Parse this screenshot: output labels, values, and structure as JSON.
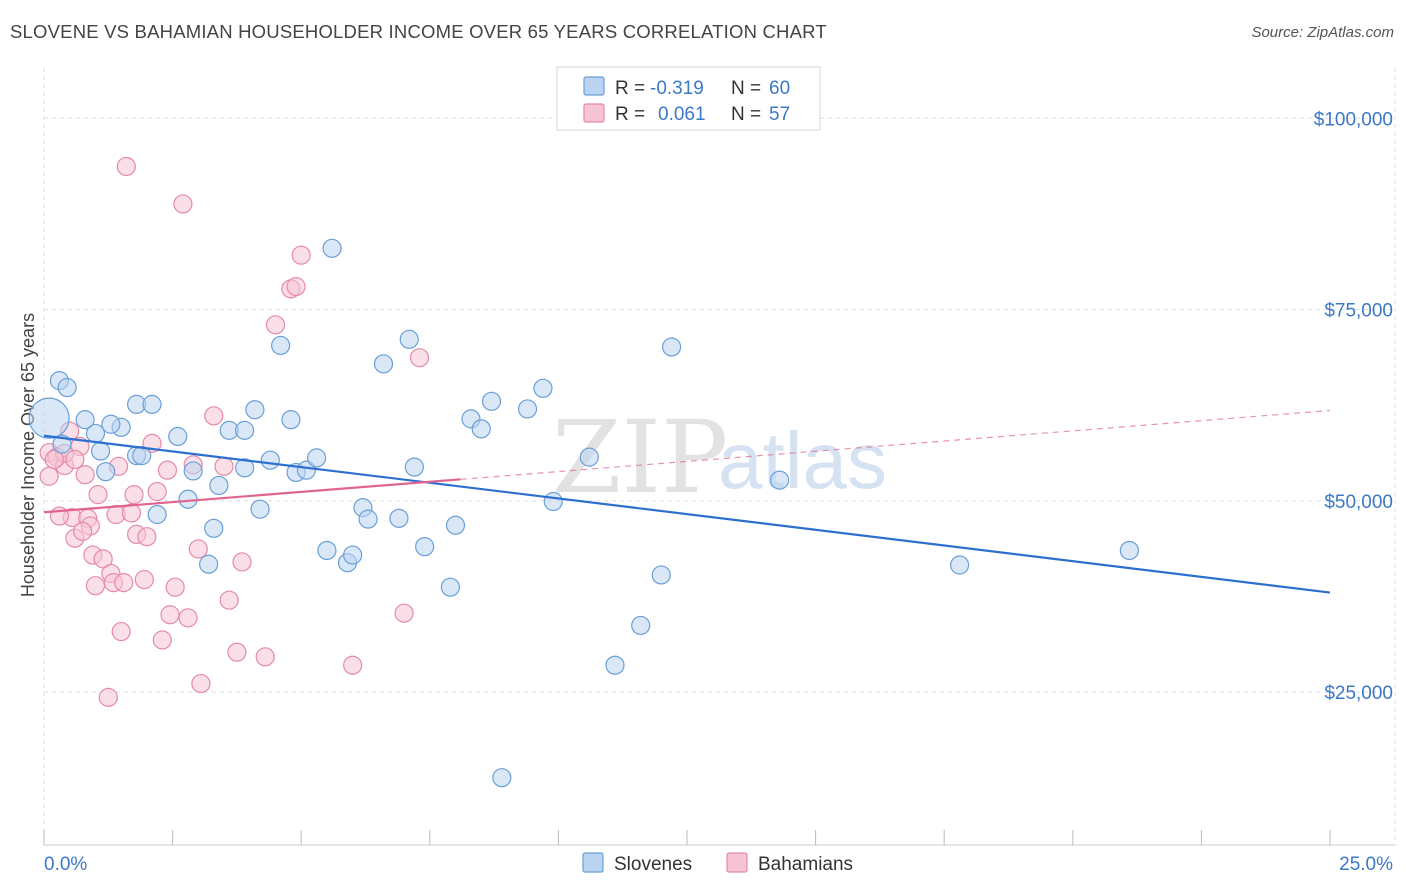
{
  "title": "SLOVENE VS BAHAMIAN HOUSEHOLDER INCOME OVER 65 YEARS CORRELATION CHART",
  "source": "Source: ZipAtlas.com",
  "watermark": {
    "zip": "ZIP",
    "atlas": "atlas"
  },
  "legend_top": {
    "rows": [
      {
        "r_label": "R =",
        "r_value": "-0.319",
        "n_label": "N =",
        "n_value": "60"
      },
      {
        "r_label": "R =",
        "r_value": "0.061",
        "n_label": "N =",
        "n_value": "57"
      }
    ]
  },
  "legend_bottom": {
    "items": [
      "Slovenes",
      "Bahamians"
    ]
  },
  "colors": {
    "blue_fill": "#b9d3f1",
    "blue_stroke": "#6a9fd8",
    "blue_line": "#2d6fcf",
    "pink_fill": "#f7c4d3",
    "pink_stroke": "#e58aa8",
    "pink_line": "#e0648f",
    "grid": "#dedede",
    "tick_text": "#3b78c8"
  },
  "chart_data": {
    "type": "scatter",
    "title": "SLOVENE VS BAHAMIAN HOUSEHOLDER INCOME OVER 65 YEARS CORRELATION CHART",
    "xlabel": "",
    "ylabel": "Householder Income Over 65 years",
    "xlim": [
      0,
      25
    ],
    "ylim": [
      5000,
      105000
    ],
    "x_tick_labels": [
      "0.0%",
      "25.0%"
    ],
    "y_ticks": [
      25000,
      50000,
      75000,
      100000
    ],
    "y_tick_labels": [
      "$25,000",
      "$50,000",
      "$75,000",
      "$100,000"
    ],
    "grid": true,
    "legend_position": "top-center",
    "series": [
      {
        "name": "Slovenes",
        "color": "#6a9fd8",
        "trend": {
          "x": [
            0,
            25
          ],
          "y": [
            58500,
            38000
          ],
          "dashed_extension": false
        },
        "points": [
          [
            0.1,
            60800,
            "large"
          ],
          [
            0.3,
            65700
          ],
          [
            0.45,
            64800
          ],
          [
            1.0,
            58800
          ],
          [
            1.5,
            59600
          ],
          [
            1.8,
            62600
          ],
          [
            2.1,
            62600
          ],
          [
            0.8,
            60600
          ],
          [
            1.3,
            60000
          ],
          [
            1.2,
            53800
          ],
          [
            1.8,
            55900
          ],
          [
            2.6,
            58400
          ],
          [
            2.9,
            53900
          ],
          [
            1.9,
            55900
          ],
          [
            2.2,
            48200
          ],
          [
            2.8,
            50200
          ],
          [
            3.2,
            41700
          ],
          [
            3.3,
            46400
          ],
          [
            3.4,
            52000
          ],
          [
            3.6,
            59200
          ],
          [
            3.9,
            59200
          ],
          [
            3.9,
            54300
          ],
          [
            4.1,
            61900
          ],
          [
            4.2,
            48900
          ],
          [
            4.4,
            55300
          ],
          [
            4.6,
            70300
          ],
          [
            4.8,
            60600
          ],
          [
            4.9,
            53700
          ],
          [
            5.1,
            54000
          ],
          [
            5.3,
            55600
          ],
          [
            5.5,
            43500
          ],
          [
            5.6,
            83000
          ],
          [
            5.9,
            41900
          ],
          [
            6.0,
            42900
          ],
          [
            6.2,
            49100
          ],
          [
            6.3,
            47600
          ],
          [
            6.6,
            67900
          ],
          [
            6.9,
            47700
          ],
          [
            7.1,
            71100
          ],
          [
            7.2,
            54400
          ],
          [
            7.4,
            44000
          ],
          [
            7.9,
            38700
          ],
          [
            8.0,
            46800
          ],
          [
            8.3,
            60700
          ],
          [
            8.5,
            59400
          ],
          [
            8.7,
            63000
          ],
          [
            8.9,
            13800
          ],
          [
            9.4,
            62000
          ],
          [
            9.7,
            64700
          ],
          [
            9.9,
            49900
          ],
          [
            10.6,
            55700
          ],
          [
            11.1,
            28500
          ],
          [
            11.6,
            33700
          ],
          [
            12.0,
            40300
          ],
          [
            12.2,
            70100
          ],
          [
            14.3,
            52700
          ],
          [
            17.8,
            41600
          ],
          [
            21.1,
            43500
          ],
          [
            0.35,
            57400
          ],
          [
            1.1,
            56500
          ]
        ]
      },
      {
        "name": "Bahamians",
        "color": "#e58aa8",
        "trend": {
          "x": [
            0,
            8.1
          ],
          "y": [
            48500,
            52800
          ],
          "dashed_to": [
            25,
            61800
          ]
        },
        "points": [
          [
            0.1,
            56300
          ],
          [
            0.1,
            53200
          ],
          [
            0.25,
            55700
          ],
          [
            0.4,
            54600
          ],
          [
            0.4,
            56200
          ],
          [
            0.5,
            59100
          ],
          [
            0.55,
            47800
          ],
          [
            0.6,
            45100
          ],
          [
            0.7,
            57100
          ],
          [
            0.8,
            53400
          ],
          [
            0.85,
            47700
          ],
          [
            0.9,
            46700
          ],
          [
            0.95,
            42900
          ],
          [
            1.0,
            38900
          ],
          [
            1.05,
            50800
          ],
          [
            1.15,
            42400
          ],
          [
            1.3,
            40500
          ],
          [
            1.35,
            39300
          ],
          [
            1.4,
            48200
          ],
          [
            1.5,
            32900
          ],
          [
            1.55,
            39300
          ],
          [
            1.6,
            93700
          ],
          [
            1.7,
            48400
          ],
          [
            1.75,
            50800
          ],
          [
            1.8,
            45600
          ],
          [
            1.95,
            39700
          ],
          [
            2.0,
            45300
          ],
          [
            2.1,
            57500
          ],
          [
            2.2,
            51200
          ],
          [
            2.3,
            31800
          ],
          [
            2.4,
            54000
          ],
          [
            2.45,
            35100
          ],
          [
            2.55,
            38700
          ],
          [
            2.7,
            88800
          ],
          [
            2.8,
            34700
          ],
          [
            3.0,
            43700
          ],
          [
            3.05,
            26100
          ],
          [
            3.3,
            61100
          ],
          [
            3.5,
            54500
          ],
          [
            3.6,
            37000
          ],
          [
            3.75,
            30200
          ],
          [
            3.85,
            42000
          ],
          [
            4.3,
            29600
          ],
          [
            4.5,
            73000
          ],
          [
            4.8,
            77700
          ],
          [
            4.9,
            78000
          ],
          [
            5.0,
            82100
          ],
          [
            6.0,
            28500
          ],
          [
            7.0,
            35300
          ],
          [
            7.3,
            68700
          ],
          [
            0.3,
            48000
          ],
          [
            0.6,
            55400
          ],
          [
            1.25,
            24300
          ],
          [
            0.75,
            46000
          ],
          [
            1.45,
            54500
          ],
          [
            2.9,
            54700
          ],
          [
            0.2,
            55400
          ]
        ]
      }
    ]
  }
}
